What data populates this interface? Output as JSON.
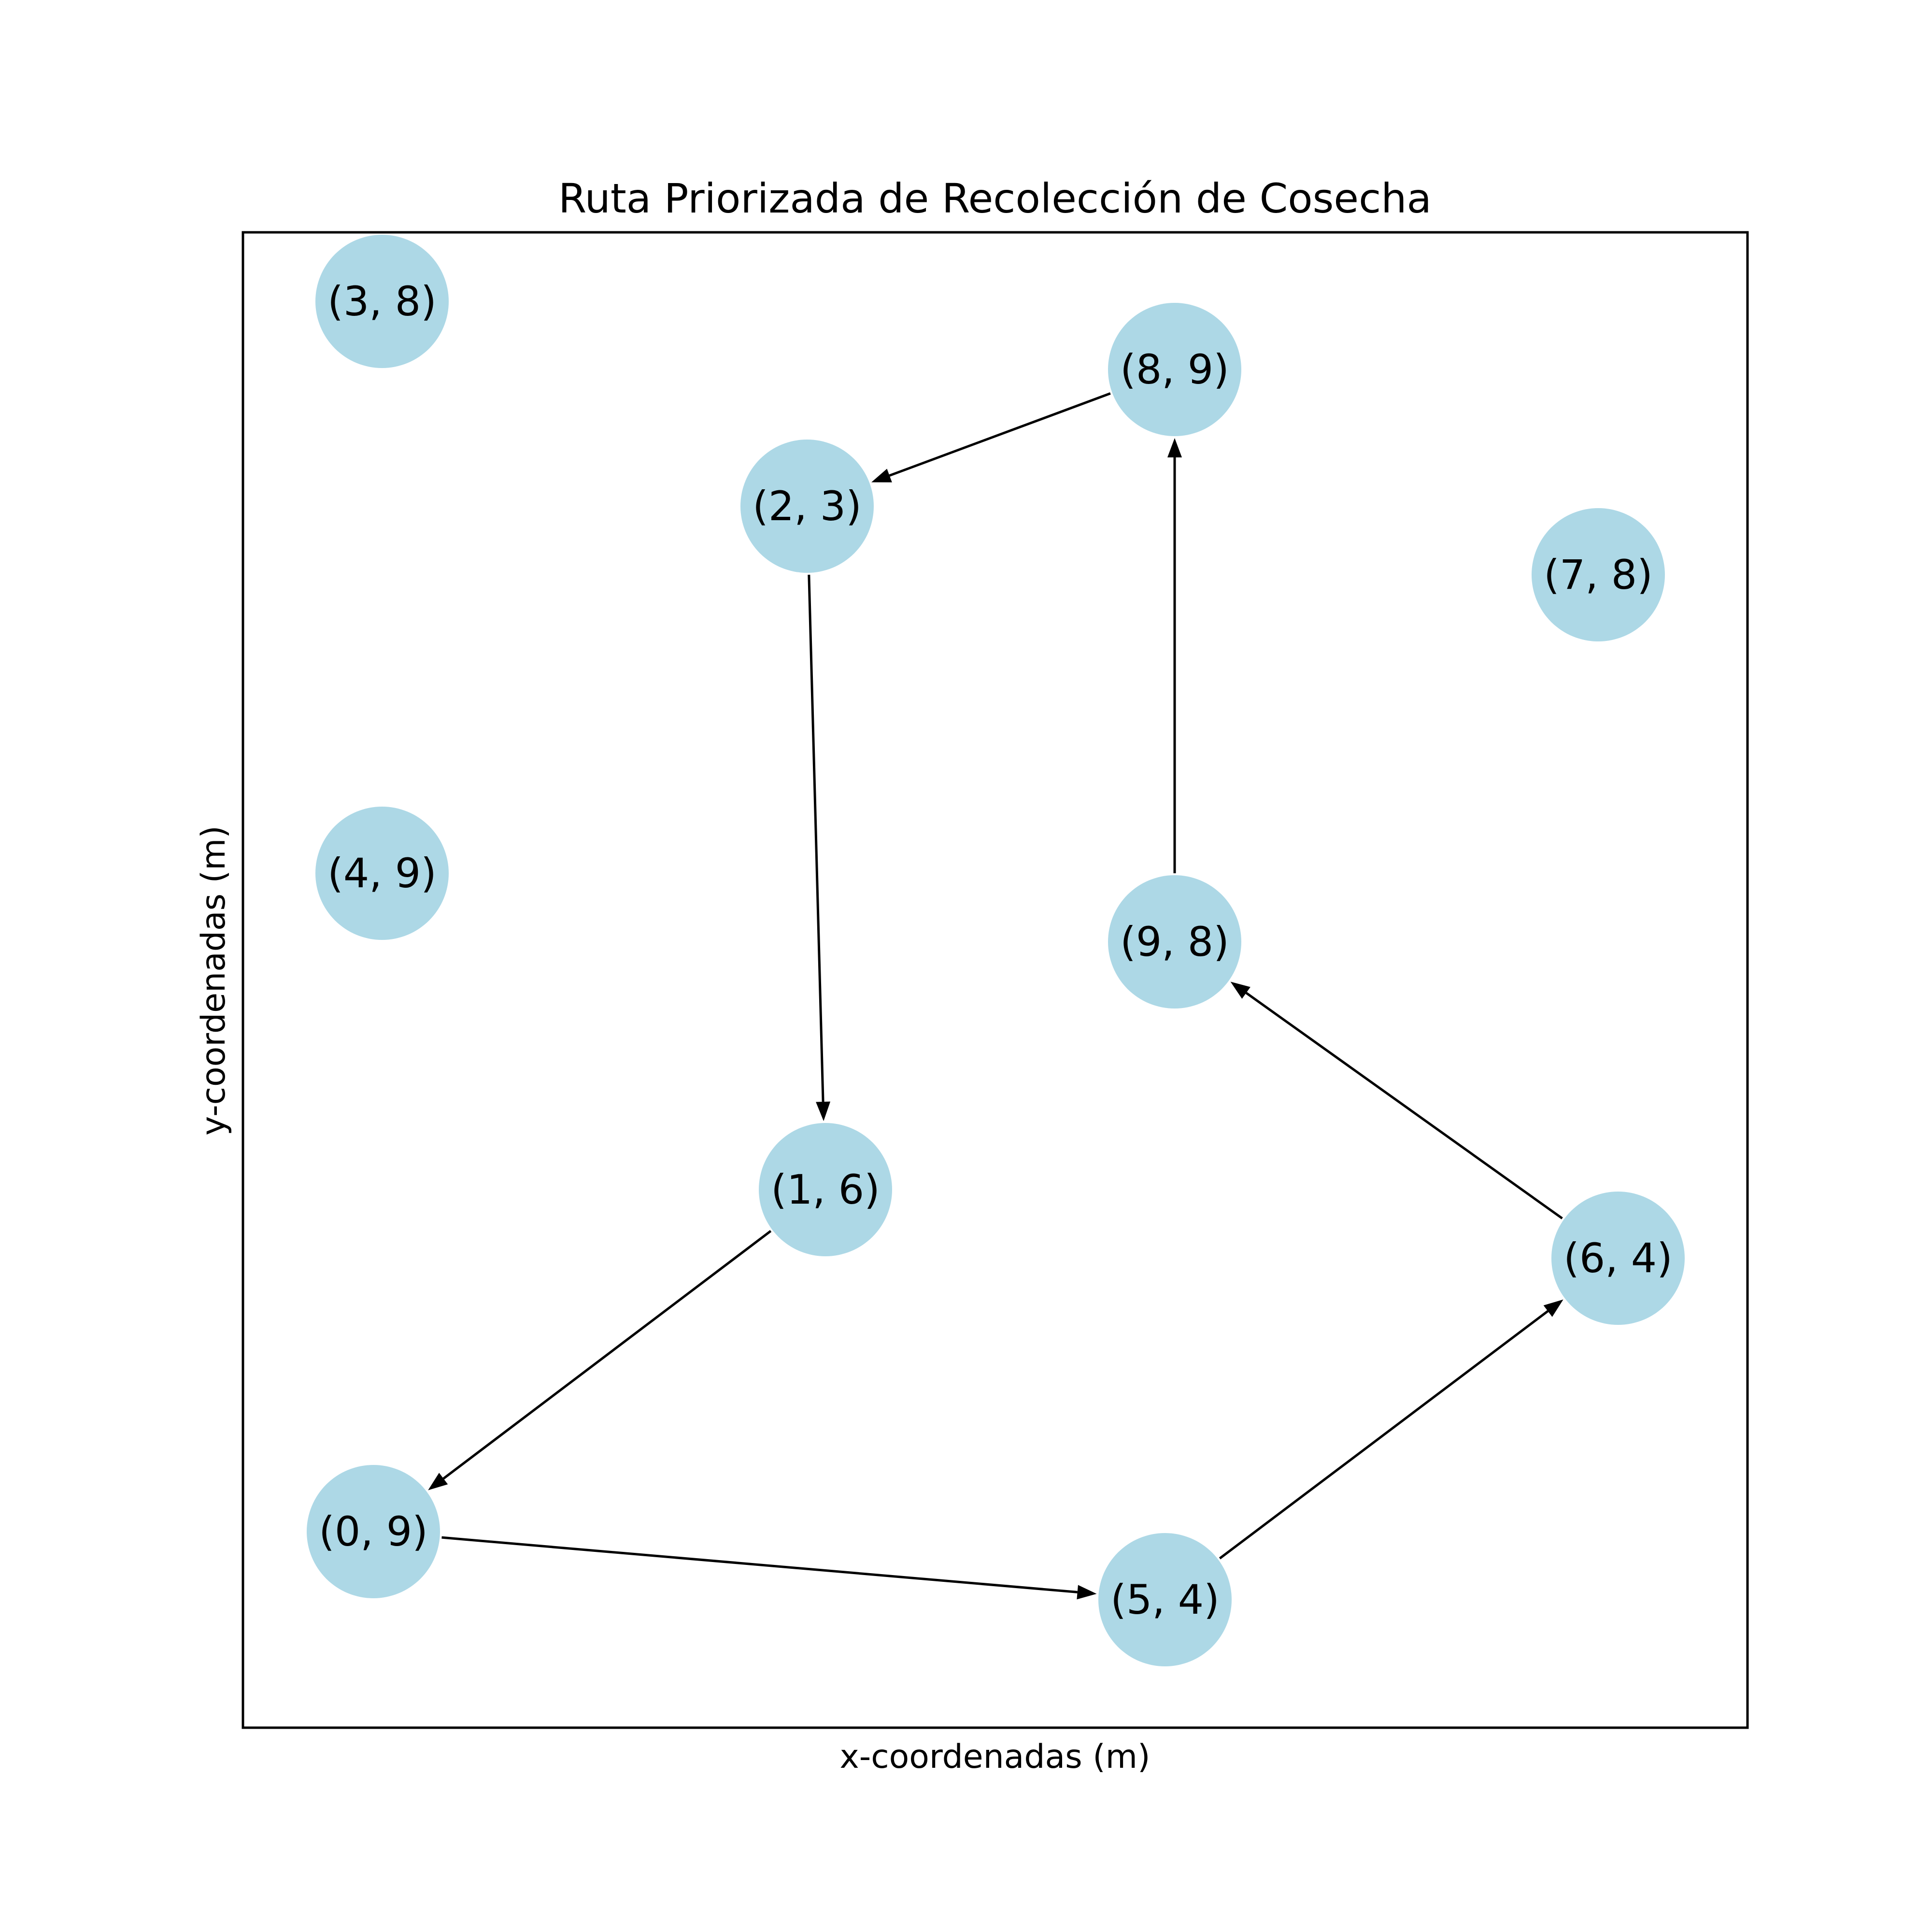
{
  "title": "Ruta Priorizada de Recolección de Cosecha",
  "xlabel": "x-coordenadas (m)",
  "ylabel": "y-coordenadas (m)",
  "node_color": "#add8e6",
  "edge_color": "#000000",
  "nodes": [
    {
      "id": "3-8",
      "label": "(3, 8)"
    },
    {
      "id": "8-9",
      "label": "(8, 9)"
    },
    {
      "id": "2-3",
      "label": "(2, 3)"
    },
    {
      "id": "7-8",
      "label": "(7, 8)"
    },
    {
      "id": "4-9",
      "label": "(4, 9)"
    },
    {
      "id": "9-8",
      "label": "(9, 8)"
    },
    {
      "id": "1-6",
      "label": "(1, 6)"
    },
    {
      "id": "6-4",
      "label": "(6, 4)"
    },
    {
      "id": "0-9",
      "label": "(0, 9)"
    },
    {
      "id": "5-4",
      "label": "(5, 4)"
    }
  ],
  "edges": [
    {
      "from": "8-9",
      "to": "2-3"
    },
    {
      "from": "2-3",
      "to": "1-6"
    },
    {
      "from": "1-6",
      "to": "0-9"
    },
    {
      "from": "0-9",
      "to": "5-4"
    },
    {
      "from": "5-4",
      "to": "6-4"
    },
    {
      "from": "6-4",
      "to": "9-8"
    },
    {
      "from": "9-8",
      "to": "8-9"
    }
  ]
}
